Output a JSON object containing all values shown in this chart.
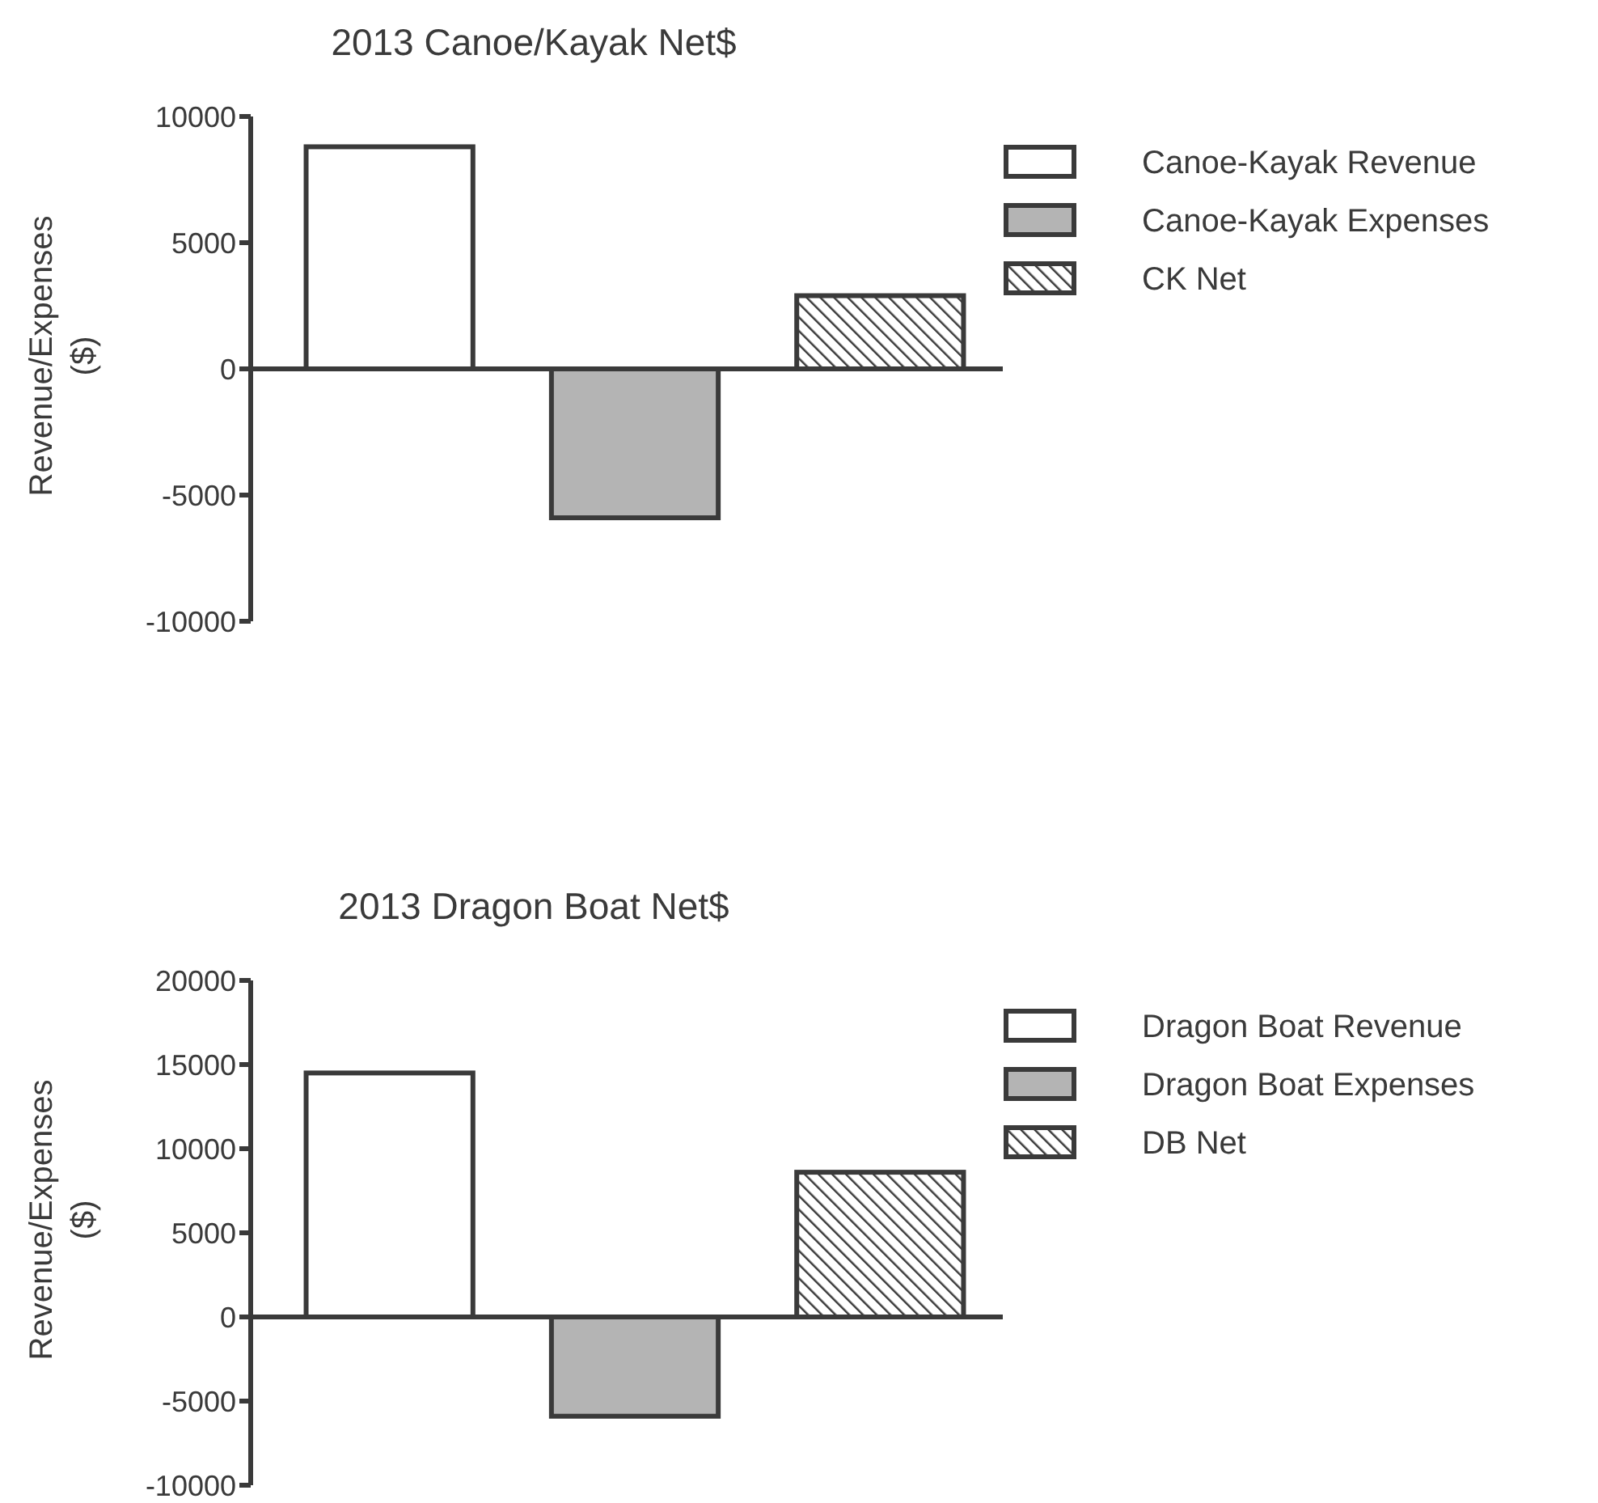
{
  "chart_data": [
    {
      "type": "bar",
      "title": "2013 Canoe/Kayak Net$",
      "ylabel": "Revenue/Expenses ($)",
      "categories": [
        null
      ],
      "series": [
        {
          "name": "Canoe-Kayak Revenue",
          "color": "#ffffff",
          "values": [
            8800
          ]
        },
        {
          "name": "Canoe-Kayak Expenses",
          "color": "#b4b4b4",
          "values": [
            -5900
          ]
        },
        {
          "name": "CK Net",
          "color": "#3a3a3a",
          "values": [
            2900
          ]
        }
      ],
      "ylim": [
        -10000,
        10000
      ],
      "yticks": [
        -10000,
        -5000,
        0,
        5000,
        10000
      ],
      "legend": "right"
    },
    {
      "type": "bar",
      "title": "2013 Dragon Boat Net$",
      "ylabel": "Revenue/Expenses ($)",
      "categories": [
        null
      ],
      "series": [
        {
          "name": "Dragon Boat Revenue",
          "color": "#ffffff",
          "values": [
            14500
          ]
        },
        {
          "name": "Dragon Boat Expenses",
          "color": "#b4b4b4",
          "values": [
            -5900
          ]
        },
        {
          "name": "DB Net",
          "color": "#3a3a3a",
          "values": [
            8600
          ]
        }
      ],
      "ylim": [
        -10000,
        20000
      ],
      "yticks": [
        -10000,
        -5000,
        0,
        5000,
        10000,
        15000,
        20000
      ],
      "legend": "right"
    }
  ]
}
